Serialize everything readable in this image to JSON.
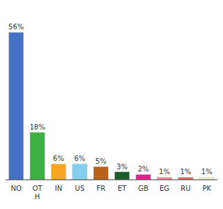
{
  "chart_data": {
    "type": "bar",
    "categories": [
      "NO",
      "OT\nH",
      "IN",
      "US",
      "FR",
      "ET",
      "GB",
      "EG",
      "RU",
      "PK"
    ],
    "values": [
      56,
      18,
      6,
      6,
      5,
      3,
      2,
      1,
      1,
      1
    ],
    "value_labels": [
      "56%",
      "18%",
      "6%",
      "6%",
      "5%",
      "3%",
      "2%",
      "1%",
      "1%",
      "1%"
    ],
    "colors": [
      "#4472c4",
      "#3cb043",
      "#f5a623",
      "#87ceeb",
      "#b8621b",
      "#1a5c2a",
      "#e91e8c",
      "#f48a9a",
      "#e07070",
      "#f0f0d0"
    ],
    "ylim": [
      0,
      63
    ],
    "data_labels": true,
    "tick_labels": "x",
    "grid": false
  }
}
